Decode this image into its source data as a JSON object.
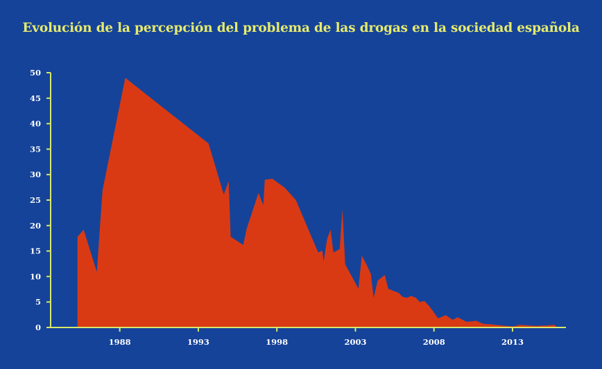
{
  "chart_data": {
    "type": "area",
    "title": "Evolución de la percepción del problema de las drogas en la sociedad española",
    "xlabel": "",
    "ylabel": "",
    "xlim": [
      1983.6,
      2016.4
    ],
    "ylim": [
      0,
      50
    ],
    "x_ticks": [
      1988,
      1993,
      1998,
      2003,
      2008,
      2013
    ],
    "y_ticks": [
      0,
      5,
      10,
      15,
      20,
      25,
      30,
      35,
      40,
      45,
      50
    ],
    "grid": false,
    "legend": "none",
    "colors": {
      "background": "#15439a",
      "area": "#d93a14",
      "axis": "#d8e86a",
      "title": "#e6ea6c",
      "tick_labels": "#ffffff"
    },
    "series": [
      {
        "points": [
          [
            1985.31,
            0
          ],
          [
            1985.31,
            17.8
          ],
          [
            1985.7,
            19.2
          ],
          [
            1986.54,
            10.9
          ],
          [
            1986.9,
            26.9
          ],
          [
            1988.35,
            49
          ],
          [
            1993.65,
            36.1
          ],
          [
            1994.62,
            26.1
          ],
          [
            1994.93,
            28.7
          ],
          [
            1995.06,
            17.8
          ],
          [
            1995.86,
            16.2
          ],
          [
            1996.08,
            19.4
          ],
          [
            1996.83,
            26.4
          ],
          [
            1997.14,
            24
          ],
          [
            1997.23,
            29
          ],
          [
            1997.71,
            29.2
          ],
          [
            1998.51,
            27.4
          ],
          [
            1999.21,
            25
          ],
          [
            2000.63,
            14.7
          ],
          [
            2000.89,
            15.1
          ],
          [
            2000.98,
            13
          ],
          [
            2001.2,
            17.4
          ],
          [
            2001.42,
            19.2
          ],
          [
            2001.6,
            14.7
          ],
          [
            2002.0,
            15.4
          ],
          [
            2002.17,
            23.2
          ],
          [
            2002.35,
            12.4
          ],
          [
            2002.79,
            9.9
          ],
          [
            2003.19,
            7.6
          ],
          [
            2003.41,
            14.1
          ],
          [
            2003.76,
            12
          ],
          [
            2003.98,
            10.5
          ],
          [
            2004.16,
            5.8
          ],
          [
            2004.42,
            9.2
          ],
          [
            2004.87,
            10.3
          ],
          [
            2005.09,
            7.6
          ],
          [
            2005.4,
            7.2
          ],
          [
            2005.75,
            6.8
          ],
          [
            2006.0,
            6.0
          ],
          [
            2006.28,
            5.8
          ],
          [
            2006.55,
            6.2
          ],
          [
            2006.85,
            5.8
          ],
          [
            2007.1,
            5.0
          ],
          [
            2007.38,
            5.2
          ],
          [
            2007.7,
            4.2
          ],
          [
            2007.96,
            3.1
          ],
          [
            2008.26,
            1.8
          ],
          [
            2008.75,
            2.4
          ],
          [
            2009.19,
            1.5
          ],
          [
            2009.5,
            2
          ],
          [
            2010.08,
            1.1
          ],
          [
            2010.69,
            1.3
          ],
          [
            2011.14,
            0.7
          ],
          [
            2011.7,
            0.6
          ],
          [
            2012.28,
            0.4
          ],
          [
            2013.03,
            0.2
          ],
          [
            2013.47,
            0.5
          ],
          [
            2014.49,
            0.3
          ],
          [
            2015.2,
            0.4
          ],
          [
            2015.68,
            0.5
          ],
          [
            2015.81,
            0
          ]
        ]
      }
    ]
  }
}
